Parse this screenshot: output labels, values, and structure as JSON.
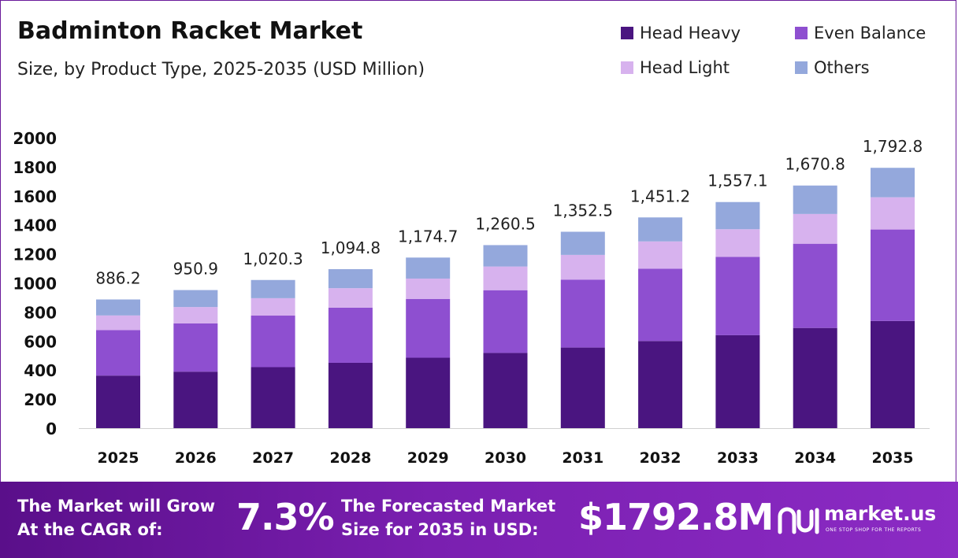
{
  "header": {
    "title": "Badminton Racket Market",
    "subtitle": "Size, by Product Type, 2025-2035 (USD Million)"
  },
  "legend": [
    {
      "label": "Head Heavy",
      "color": "#4a1580"
    },
    {
      "label": "Even Balance",
      "color": "#8e4fd0"
    },
    {
      "label": "Head Light",
      "color": "#d7b2ee"
    },
    {
      "label": "Others",
      "color": "#94a8dc"
    }
  ],
  "chart_data": {
    "type": "bar",
    "stacked": true,
    "categories": [
      "2025",
      "2026",
      "2027",
      "2028",
      "2029",
      "2030",
      "2031",
      "2032",
      "2033",
      "2034",
      "2035"
    ],
    "series": [
      {
        "name": "Head Heavy",
        "values": [
          362,
          389,
          420,
          450,
          485,
          518,
          555,
          600,
          640,
          690,
          738
        ]
      },
      {
        "name": "Even Balance",
        "values": [
          313,
          332,
          355,
          380,
          405,
          432,
          468,
          498,
          540,
          580,
          630
        ]
      },
      {
        "name": "Head Light",
        "values": [
          101,
          113,
          120,
          134,
          140,
          163,
          170,
          188,
          190,
          205,
          222
        ]
      },
      {
        "name": "Others",
        "values": [
          110.2,
          116.9,
          125.3,
          130.8,
          144.7,
          147.5,
          159.5,
          165.2,
          187.1,
          195.8,
          202.8
        ]
      }
    ],
    "totals": [
      "886.2",
      "950.9",
      "1,020.3",
      "1,094.8",
      "1,174.7",
      "1,260.5",
      "1,352.5",
      "1,451.2",
      "1,557.1",
      "1,670.8",
      "1,792.8"
    ],
    "yticks": [
      "0",
      "200",
      "400",
      "600",
      "800",
      "1000",
      "1200",
      "1400",
      "1600",
      "1800",
      "2000"
    ],
    "ylim": [
      0,
      2000
    ],
    "grid": false,
    "legend_position": "top-right"
  },
  "footer": {
    "cagr_line1": "The Market will Grow",
    "cagr_line2": "At the CAGR of:",
    "cagr_value": "7.3%",
    "forecast_line1": "The Forecasted Market",
    "forecast_line2": "Size for 2035 in USD:",
    "forecast_value": "$1792.8M",
    "brand": "market.us",
    "brand_tagline": "ONE STOP SHOP FOR THE REPORTS"
  }
}
